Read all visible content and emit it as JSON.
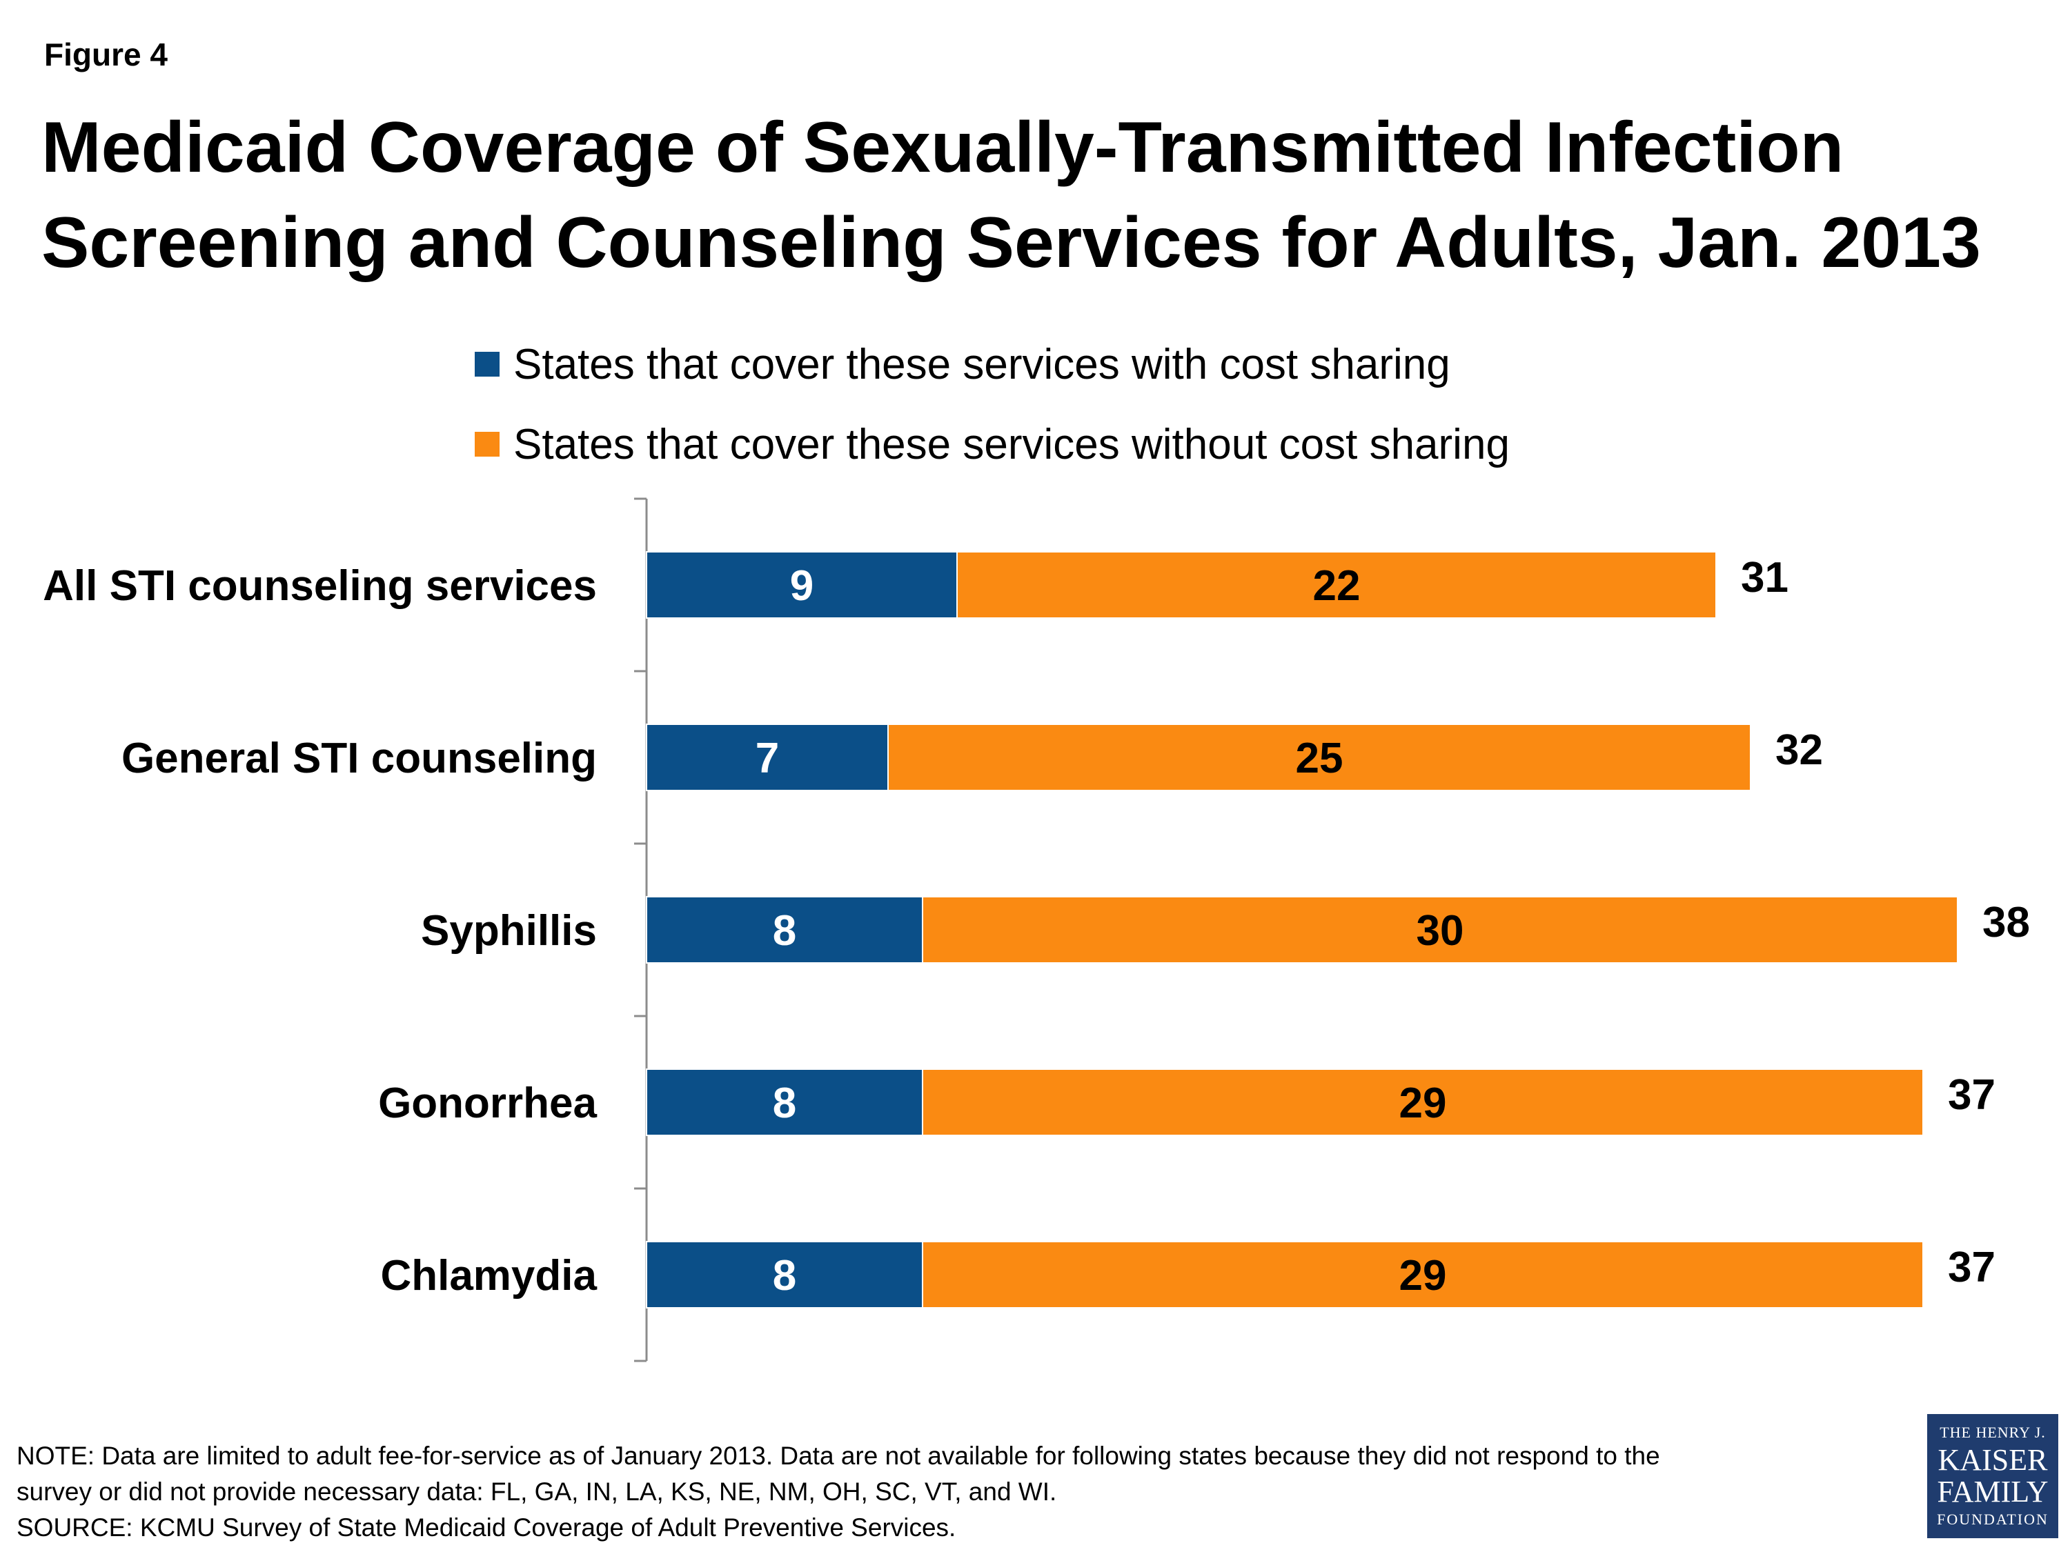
{
  "figure_label": "Figure 4",
  "title_line1": "Medicaid Coverage of Sexually-Transmitted Infection",
  "title_line2": "Screening and Counseling Services for Adults, Jan. 2013",
  "legend": [
    {
      "label": "States that cover these services with cost sharing",
      "color": "#0b4f88"
    },
    {
      "label": "States that cover these services without cost sharing",
      "color": "#fa8a12"
    }
  ],
  "chart_data": {
    "type": "bar",
    "orientation": "horizontal",
    "stacked": true,
    "categories": [
      "All STI counseling services",
      "General STI counseling",
      "Syphillis",
      "Gonorrhea",
      "Chlamydia"
    ],
    "series": [
      {
        "name": "States that cover these services with cost sharing",
        "values": [
          9,
          7,
          8,
          8,
          8
        ],
        "color": "#0b4f88"
      },
      {
        "name": "States that cover these services without cost sharing",
        "values": [
          22,
          25,
          30,
          29,
          29
        ],
        "color": "#fa8a12"
      }
    ],
    "totals": [
      31,
      32,
      38,
      37,
      37
    ],
    "legend_position": "top",
    "grid": false
  },
  "footnote": {
    "note_line1": "NOTE: Data are limited to adult fee-for-service as of January 2013. Data are not available for following states because they did not respond to the",
    "note_line2": "survey or did not provide necessary data: FL, GA, IN, LA, KS, NE, NM, OH, SC, VT, and WI.",
    "source": "SOURCE:  KCMU Survey of State Medicaid Coverage of Adult Preventive Services."
  },
  "logo": {
    "line1": "THE HENRY J.",
    "line2a": "KAISER",
    "line2b": "FAMILY",
    "line3": "FOUNDATION"
  }
}
